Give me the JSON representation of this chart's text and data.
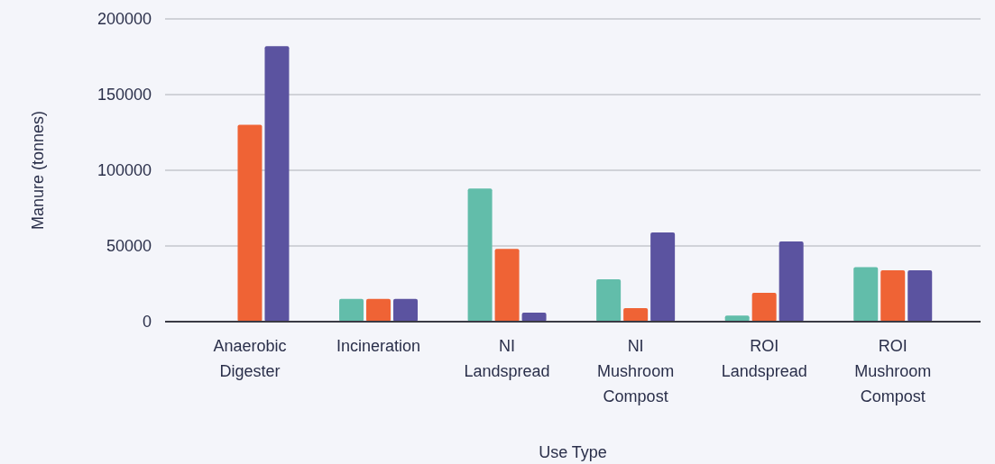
{
  "chart_data": {
    "type": "bar",
    "categories": [
      "Anaerobic Digester",
      "Incineration",
      "NI Landspread",
      "NI Mushroom Compost",
      "ROI Landspread",
      "ROI Mushroom Compost"
    ],
    "series": [
      {
        "color": "#62bdaa",
        "values": [
          0,
          15000,
          88000,
          28000,
          4000,
          36000
        ]
      },
      {
        "color": "#ef6335",
        "values": [
          130000,
          15000,
          48000,
          9000,
          19000,
          34000
        ]
      },
      {
        "color": "#5b53a0",
        "values": [
          182000,
          15000,
          6000,
          59000,
          53000,
          34000
        ]
      }
    ],
    "xlabel": "Use Type",
    "ylabel": "Manure (tonnes)",
    "ylim": [
      0,
      200000
    ],
    "yticks": [
      0,
      50000,
      100000,
      150000,
      200000
    ],
    "grid": "y"
  }
}
